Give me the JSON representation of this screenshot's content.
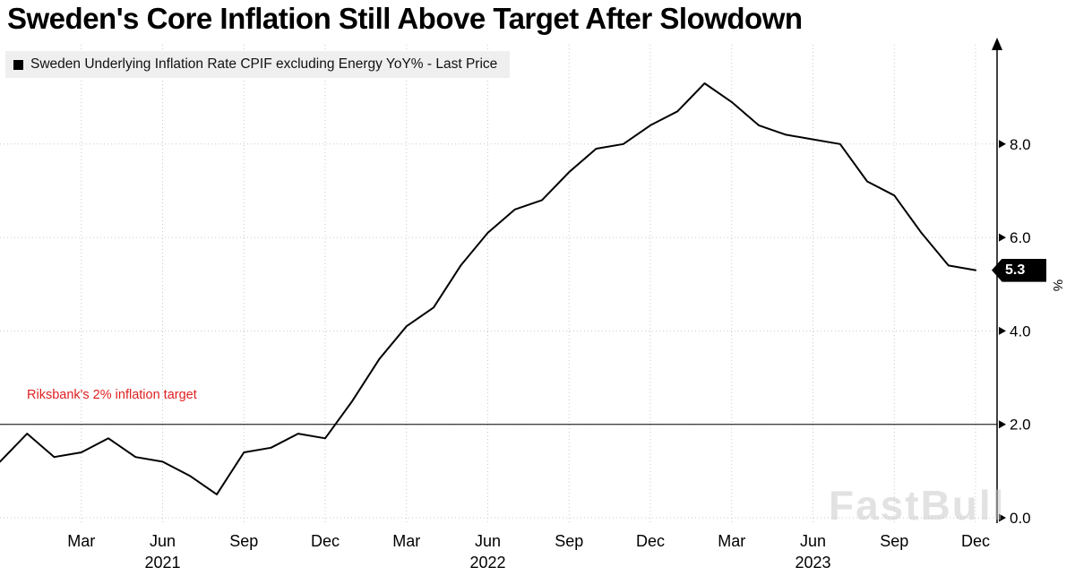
{
  "title": "Sweden's Core Inflation Still Above Target After Slowdown",
  "legend": {
    "marker_color": "#000000",
    "label": "Sweden Underlying Inflation Rate CPIF excluding Energy YoY% - Last Price"
  },
  "annotation": {
    "text": "Riksbank's 2% inflation target",
    "color": "#e01f1f"
  },
  "last_price": {
    "value": "5.3",
    "bg": "#000000",
    "fg": "#ffffff"
  },
  "y_axis_unit": "%",
  "watermark": "FastBull",
  "chart_data": {
    "type": "line",
    "title": "Sweden's Core Inflation Still Above Target After Slowdown",
    "grid": true,
    "legend_position": "top-left",
    "y_axis_side": "right",
    "ylim": [
      0,
      10.1
    ],
    "y_ticks": [
      0.0,
      2.0,
      4.0,
      6.0,
      8.0
    ],
    "target_line": {
      "value": 2.0,
      "label": "Riksbank's 2% inflation target",
      "color": "#000000"
    },
    "x": [
      "2020-12",
      "2021-01",
      "2021-02",
      "2021-03",
      "2021-04",
      "2021-05",
      "2021-06",
      "2021-07",
      "2021-08",
      "2021-09",
      "2021-10",
      "2021-11",
      "2021-12",
      "2022-01",
      "2022-02",
      "2022-03",
      "2022-04",
      "2022-05",
      "2022-06",
      "2022-07",
      "2022-08",
      "2022-09",
      "2022-10",
      "2022-11",
      "2022-12",
      "2023-01",
      "2023-02",
      "2023-03",
      "2023-04",
      "2023-05",
      "2023-06",
      "2023-07",
      "2023-08",
      "2023-09",
      "2023-10",
      "2023-11",
      "2023-12"
    ],
    "series": [
      {
        "name": "Sweden Underlying Inflation Rate CPIF excluding Energy YoY% - Last Price",
        "color": "#000000",
        "values": [
          1.2,
          1.8,
          1.3,
          1.4,
          1.7,
          1.3,
          1.2,
          0.9,
          0.5,
          1.4,
          1.5,
          1.8,
          1.7,
          2.5,
          3.4,
          4.1,
          4.5,
          5.4,
          6.1,
          6.6,
          6.8,
          7.4,
          7.9,
          8.0,
          8.4,
          8.7,
          9.3,
          8.9,
          8.4,
          8.2,
          8.1,
          8.0,
          7.2,
          6.9,
          6.1,
          5.4,
          5.3
        ]
      }
    ],
    "x_tick_labels": [
      {
        "label": "Mar",
        "month_index": 3
      },
      {
        "label": "Jun",
        "month_index": 6
      },
      {
        "label": "Sep",
        "month_index": 9
      },
      {
        "label": "Dec",
        "month_index": 12
      },
      {
        "label": "Mar",
        "month_index": 15
      },
      {
        "label": "Jun",
        "month_index": 18
      },
      {
        "label": "Sep",
        "month_index": 21
      },
      {
        "label": "Dec",
        "month_index": 24
      },
      {
        "label": "Mar",
        "month_index": 27
      },
      {
        "label": "Jun",
        "month_index": 30
      },
      {
        "label": "Sep",
        "month_index": 33
      },
      {
        "label": "Dec",
        "month_index": 36
      }
    ],
    "year_labels": [
      {
        "label": "2021",
        "month_index": 6
      },
      {
        "label": "2022",
        "month_index": 18
      },
      {
        "label": "2023",
        "month_index": 30
      }
    ]
  }
}
